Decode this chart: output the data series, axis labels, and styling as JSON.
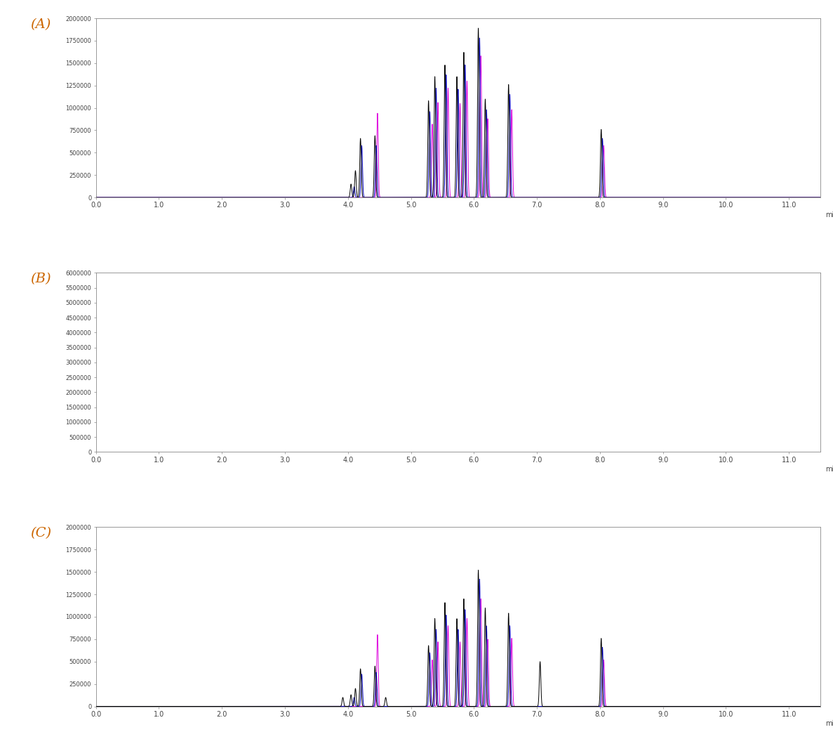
{
  "panels": [
    "A",
    "B",
    "C"
  ],
  "xlim": [
    0.0,
    11.5
  ],
  "xlabel": "min",
  "bg_color": "#ffffff",
  "line_color_black": "#000000",
  "line_color_blue": "#0000bb",
  "line_color_magenta": "#dd00dd",
  "peak_sigma": 0.012,
  "panel_A": {
    "ylim": [
      0,
      2000000
    ],
    "yticks": [
      0,
      250000,
      500000,
      750000,
      1000000,
      1250000,
      1500000,
      1750000,
      2000000
    ],
    "ytick_labels": [
      "0",
      "250000",
      "500000",
      "750000",
      "1000000",
      "1250000",
      "1500000",
      "1750000",
      "2000000"
    ],
    "peaks_black": [
      [
        4.05,
        150000
      ],
      [
        4.12,
        300000
      ],
      [
        4.2,
        660000
      ],
      [
        4.43,
        690000
      ],
      [
        5.28,
        1080000
      ],
      [
        5.38,
        1350000
      ],
      [
        5.54,
        1480000
      ],
      [
        5.73,
        1350000
      ],
      [
        5.84,
        1620000
      ],
      [
        6.07,
        1890000
      ],
      [
        6.18,
        1100000
      ],
      [
        6.55,
        1260000
      ],
      [
        8.02,
        760000
      ]
    ],
    "peaks_blue": [
      [
        4.1,
        120000
      ],
      [
        4.22,
        580000
      ],
      [
        4.45,
        580000
      ],
      [
        5.3,
        960000
      ],
      [
        5.4,
        1220000
      ],
      [
        5.56,
        1370000
      ],
      [
        5.75,
        1210000
      ],
      [
        5.86,
        1480000
      ],
      [
        6.09,
        1780000
      ],
      [
        6.2,
        980000
      ],
      [
        6.57,
        1150000
      ],
      [
        8.04,
        660000
      ]
    ],
    "peaks_magenta": [
      [
        4.47,
        940000
      ],
      [
        5.34,
        820000
      ],
      [
        5.43,
        1060000
      ],
      [
        5.59,
        1220000
      ],
      [
        5.78,
        1050000
      ],
      [
        5.89,
        1300000
      ],
      [
        6.11,
        1580000
      ],
      [
        6.22,
        880000
      ],
      [
        6.6,
        980000
      ],
      [
        8.06,
        580000
      ]
    ]
  },
  "panel_B": {
    "ylim": [
      0,
      6000000
    ],
    "yticks": [
      0,
      500000,
      1000000,
      1500000,
      2000000,
      2500000,
      3000000,
      3500000,
      4000000,
      4500000,
      5000000,
      5500000,
      6000000
    ],
    "ytick_labels": [
      "0",
      "500000",
      "1000000",
      "1500000",
      "2000000",
      "2500000",
      "3000000",
      "3500000",
      "4000000",
      "4500000",
      "5000000",
      "5500000",
      "6000000"
    ],
    "peaks_black": [],
    "peaks_blue": [],
    "peaks_magenta": []
  },
  "panel_C": {
    "ylim": [
      0,
      2000000
    ],
    "yticks": [
      0,
      250000,
      500000,
      750000,
      1000000,
      1250000,
      1500000,
      1750000,
      2000000
    ],
    "ytick_labels": [
      "0",
      "250000",
      "500000",
      "750000",
      "1000000",
      "1250000",
      "1500000",
      "1750000",
      "2000000"
    ],
    "peaks_black": [
      [
        3.92,
        100000
      ],
      [
        4.05,
        130000
      ],
      [
        4.12,
        200000
      ],
      [
        4.2,
        420000
      ],
      [
        4.43,
        450000
      ],
      [
        4.6,
        100000
      ],
      [
        5.28,
        680000
      ],
      [
        5.38,
        980000
      ],
      [
        5.54,
        1160000
      ],
      [
        5.73,
        980000
      ],
      [
        5.84,
        1200000
      ],
      [
        6.07,
        1520000
      ],
      [
        6.18,
        1100000
      ],
      [
        6.55,
        1040000
      ],
      [
        7.05,
        500000
      ],
      [
        8.02,
        760000
      ]
    ],
    "peaks_blue": [
      [
        4.1,
        100000
      ],
      [
        4.22,
        360000
      ],
      [
        4.45,
        380000
      ],
      [
        5.3,
        600000
      ],
      [
        5.4,
        860000
      ],
      [
        5.56,
        1020000
      ],
      [
        5.75,
        860000
      ],
      [
        5.86,
        1080000
      ],
      [
        6.09,
        1420000
      ],
      [
        6.2,
        900000
      ],
      [
        6.57,
        900000
      ],
      [
        8.04,
        660000
      ]
    ],
    "peaks_magenta": [
      [
        4.47,
        800000
      ],
      [
        5.34,
        520000
      ],
      [
        5.43,
        720000
      ],
      [
        5.59,
        900000
      ],
      [
        5.78,
        720000
      ],
      [
        5.89,
        980000
      ],
      [
        6.11,
        1200000
      ],
      [
        6.22,
        750000
      ],
      [
        6.6,
        760000
      ],
      [
        8.06,
        520000
      ]
    ]
  }
}
